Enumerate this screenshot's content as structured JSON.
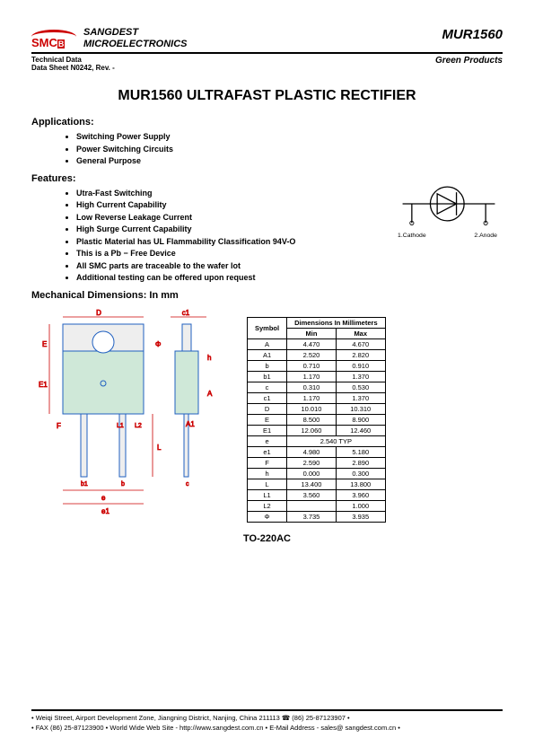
{
  "header": {
    "company_line1": "SANGDEST",
    "company_line2": "MICROELECTRONICS",
    "logo_main": "SMC",
    "part_number": "MUR1560"
  },
  "subheader": {
    "tech": "Technical Data",
    "sheet": "Data Sheet N0242, Rev. -",
    "green": "Green Products"
  },
  "title": "MUR1560 ULTRAFAST PLASTIC RECTIFIER",
  "sections": {
    "applications": "Applications:",
    "features": "Features:",
    "mechanical": "Mechanical Dimensions: In mm"
  },
  "applications": [
    "Switching Power Supply",
    "Power Switching Circuits",
    "General Purpose"
  ],
  "features": [
    "Utra-Fast Switching",
    "High Current Capability",
    "Low Reverse Leakage Current",
    "High Surge Current Capability",
    "Plastic Material has UL Flammability Classification 94V-O",
    "This is a Pb − Free Device",
    "All SMC parts are traceable to the wafer lot",
    "Additional testing can be offered upon request"
  ],
  "diode": {
    "pin1": "1.Cathode",
    "pin2": "2.Anode"
  },
  "dim_table": {
    "header_symbol": "Symbol",
    "header_group": "Dimensions In Millimeters",
    "header_min": "Min",
    "header_max": "Max",
    "rows": [
      {
        "s": "A",
        "min": "4.470",
        "max": "4.670"
      },
      {
        "s": "A1",
        "min": "2.520",
        "max": "2.820"
      },
      {
        "s": "b",
        "min": "0.710",
        "max": "0.910"
      },
      {
        "s": "b1",
        "min": "1.170",
        "max": "1.370"
      },
      {
        "s": "c",
        "min": "0.310",
        "max": "0.530"
      },
      {
        "s": "c1",
        "min": "1.170",
        "max": "1.370"
      },
      {
        "s": "D",
        "min": "10.010",
        "max": "10.310"
      },
      {
        "s": "E",
        "min": "8.500",
        "max": "8.900"
      },
      {
        "s": "E1",
        "min": "12.060",
        "max": "12.460"
      },
      {
        "s": "e",
        "min": "2.540 TYP",
        "max": ""
      },
      {
        "s": "e1",
        "min": "4.980",
        "max": "5.180"
      },
      {
        "s": "F",
        "min": "2.590",
        "max": "2.890"
      },
      {
        "s": "h",
        "min": "0.000",
        "max": "0.300"
      },
      {
        "s": "L",
        "min": "13.400",
        "max": "13.800"
      },
      {
        "s": "L1",
        "min": "3.560",
        "max": "3.960"
      },
      {
        "s": "L2",
        "min": "",
        "max": "1.000"
      },
      {
        "s": "Φ",
        "min": "3.735",
        "max": "3.935"
      }
    ]
  },
  "package_label": "TO-220AC",
  "footer": {
    "line1": "• Weiqi Street, Airport Development Zone, Jiangning District, Nanjing, China 211113 ☎ (86) 25-87123907 •",
    "line2": "• FAX (86) 25-87123900 • World Wide Web Site - http://www.sangdest.com.cn • E-Mail Address - sales@ sangdest.com.cn •"
  },
  "colors": {
    "accent": "#cc0000",
    "line_blue": "#2060c0",
    "body_fill": "#cfe8d8"
  }
}
